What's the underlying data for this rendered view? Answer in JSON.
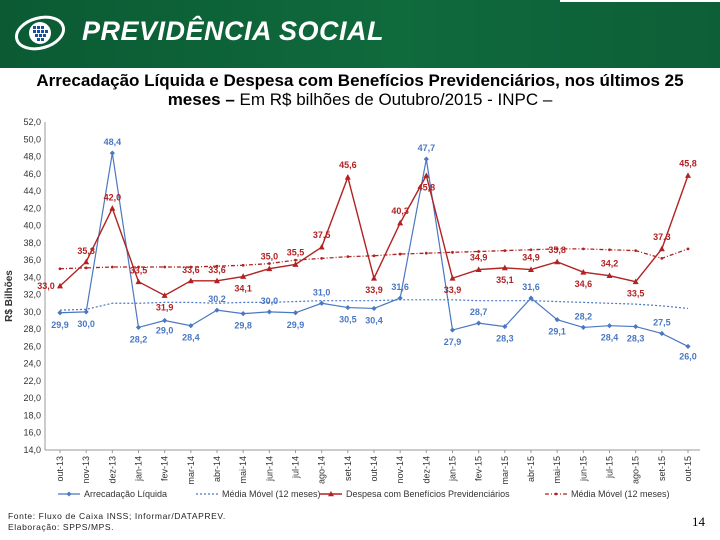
{
  "header": {
    "brand": "PREVIDÊNCIA SOCIAL",
    "title_bold": "Arrecadação Líquida e Despesa com Benefícios Previdenciários, nos últimos 25 meses –",
    "title_rest": " Em R$ bilhões de Outubro/2015 - INPC –"
  },
  "colors": {
    "banner": "#0f6a3c",
    "arrecadacao": "#4a78c2",
    "despesa": "#b22222",
    "media_arrecadacao": "#4a78c2",
    "media_despesa": "#b22222"
  },
  "chart_data": {
    "type": "line",
    "ylabel": "R$ Bilhões",
    "ylim": [
      14,
      52
    ],
    "yticks": [
      "52,0",
      "50,0",
      "48,0",
      "46,0",
      "44,0",
      "42,0",
      "40,0",
      "38,0",
      "36,0",
      "34,0",
      "32,0",
      "30,0",
      "28,0",
      "26,0",
      "24,0",
      "22,0",
      "20,0",
      "18,0",
      "16,0",
      "14,0"
    ],
    "categories": [
      "out-13",
      "nov-13",
      "dez-13",
      "jan-14",
      "fev-14",
      "mar-14",
      "abr-14",
      "mai-14",
      "jun-14",
      "jul-14",
      "ago-14",
      "set-14",
      "out-14",
      "nov-14",
      "dez-14",
      "jan-15",
      "fev-15",
      "mar-15",
      "abr-15",
      "mai-15",
      "jun-15",
      "jul-15",
      "ago-15",
      "set-15",
      "out-15"
    ],
    "series": [
      {
        "name": "Arrecadação Líquida",
        "style": "solid-diamond",
        "values": [
          29.9,
          30.0,
          48.4,
          28.2,
          29.0,
          28.4,
          30.2,
          29.8,
          30.0,
          29.9,
          31.0,
          30.5,
          30.4,
          31.6,
          47.7,
          27.9,
          28.7,
          28.3,
          31.6,
          29.1,
          28.2,
          28.4,
          28.3,
          27.5,
          26.0
        ],
        "labels": [
          "29,9",
          "30,0",
          "48,4",
          "28,2",
          "29,0",
          "28,4",
          "30,2",
          "29,8",
          "30,0",
          "29,9",
          "31,0",
          "30,5",
          "30,4",
          "31,6",
          "47,7",
          "27,9",
          "28,7",
          "28,3",
          "31,6",
          "29,1",
          "28,2",
          "28,4",
          "28,3",
          "27,5",
          "26,0"
        ]
      },
      {
        "name": "Média Móvel (12 meses)",
        "style": "dotted",
        "values": [
          30.2,
          30.3,
          31.0,
          31.0,
          31.1,
          31.1,
          31.0,
          31.1,
          31.1,
          31.2,
          31.3,
          31.3,
          31.3,
          31.4,
          31.4,
          31.4,
          31.3,
          31.3,
          31.3,
          31.2,
          31.1,
          31.0,
          30.9,
          30.7,
          30.4
        ],
        "labels": []
      },
      {
        "name": "Despesa com Benefícios Previdenciários",
        "style": "solid-triangle",
        "values": [
          33.0,
          35.8,
          42.0,
          33.5,
          31.9,
          33.6,
          33.6,
          34.1,
          35.0,
          35.5,
          37.5,
          45.6,
          33.9,
          40.3,
          45.8,
          33.9,
          34.9,
          35.1,
          34.9,
          35.8,
          34.6,
          34.2,
          33.5,
          37.3,
          45.8
        ],
        "labels": [
          "33,0",
          "35,8",
          "42,0",
          "33,5",
          "31,9",
          "33,6",
          "33,6",
          "34,1",
          "35,0",
          "35,5",
          "37,5",
          "45,6",
          "33,9",
          "40,3",
          "45,8",
          "33,9",
          "34,9",
          "35,1",
          "34,9",
          "35,8",
          "34,6",
          "34,2",
          "33,5",
          "37,3",
          "45,8"
        ]
      },
      {
        "name": "Média Móvel (12 meses)",
        "style": "dash-dot",
        "values": [
          35.0,
          35.1,
          35.2,
          35.2,
          35.2,
          35.2,
          35.3,
          35.4,
          35.6,
          36.0,
          36.2,
          36.4,
          36.5,
          36.7,
          36.8,
          36.9,
          37.0,
          37.1,
          37.2,
          37.3,
          37.3,
          37.2,
          37.1,
          36.2,
          37.3
        ],
        "labels": []
      }
    ]
  },
  "footer": {
    "source": "Fonte: Fluxo de Caixa INSS; Informar/DATAPREV.",
    "elaboration": "Elaboração: SPPS/MPS.",
    "page": "14"
  }
}
